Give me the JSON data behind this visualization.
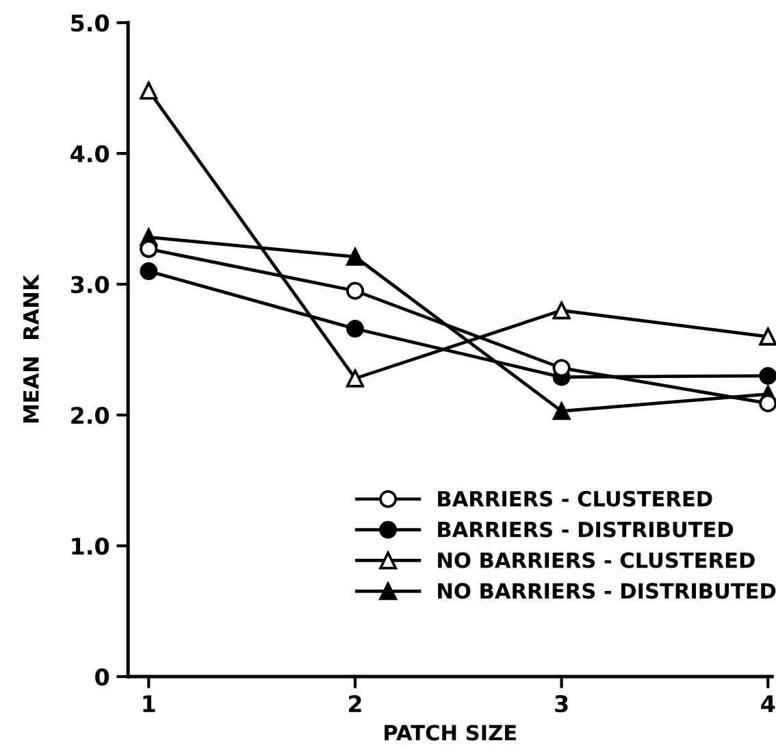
{
  "chart_data": {
    "type": "line",
    "xlabel": "PATCH SIZE",
    "ylabel": "MEAN  RANK",
    "x": [
      1,
      2,
      3,
      4
    ],
    "xlim": [
      0.9,
      4.02
    ],
    "xticks": [
      1,
      2,
      3,
      4
    ],
    "ylim": [
      0,
      5.0
    ],
    "yticks": [
      {
        "value": 0,
        "label": "0"
      },
      {
        "value": 1,
        "label": "1.0"
      },
      {
        "value": 2,
        "label": "2.0"
      },
      {
        "value": 3,
        "label": "3.0"
      },
      {
        "value": 4,
        "label": "4.0"
      },
      {
        "value": 5,
        "label": "5.0"
      }
    ],
    "grid": false,
    "legend": "bottom right",
    "line_style": "solid",
    "series": [
      {
        "name": "BARRIERS - CLUSTERED",
        "color": "#000000",
        "marker": "circle",
        "colors": [
          "#ffffff",
          "#ffffff",
          "#ffffff",
          "#ffffff"
        ],
        "values": [
          3.27,
          2.95,
          2.36,
          2.09
        ]
      },
      {
        "name": "BARRIERS - DISTRIBUTED",
        "color": "#000000",
        "marker": "circle",
        "values": [
          3.1,
          2.66,
          2.29,
          2.3
        ]
      },
      {
        "name": "NO BARRIERS - CLUSTERED",
        "color": "#000000",
        "marker": "triangle",
        "colors": [
          "#ffffff",
          "#ffffff",
          "#ffffff",
          "#ffffff"
        ],
        "values": [
          4.48,
          2.28,
          2.8,
          2.6
        ]
      },
      {
        "name": "NO BARRIERS - DISTRIBUTED",
        "color": "#000000",
        "marker": "triangle",
        "values": [
          3.36,
          3.21,
          2.03,
          2.16
        ]
      }
    ]
  }
}
